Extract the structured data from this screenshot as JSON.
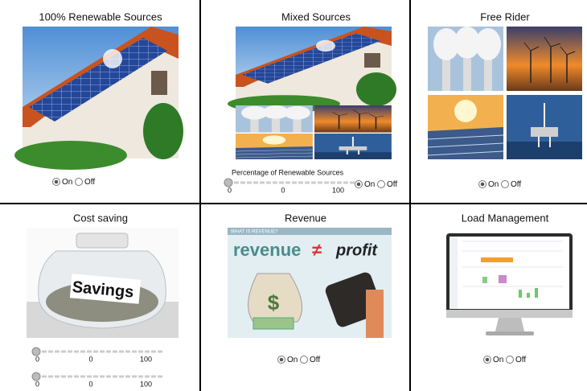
{
  "panels": [
    {
      "title": "100% Renewable Sources",
      "options": [
        "On",
        "Off"
      ]
    },
    {
      "title": "Mixed Sources",
      "slider": {
        "label": "Percentage of Renewable Sources",
        "min": 0,
        "value": 0,
        "max": 100
      },
      "options": [
        "On",
        "Off"
      ]
    },
    {
      "title": "Free Rider",
      "options": [
        "On",
        "Off"
      ]
    },
    {
      "title": "Cost saving",
      "image_text": "Savings",
      "sliders": [
        {
          "min": 0,
          "value": 0,
          "max": 100
        },
        {
          "min": 0,
          "value": 0,
          "max": 100
        }
      ]
    },
    {
      "title": "Revenue",
      "image_texts": [
        "WHAT IS REVENUE?",
        "revenue",
        "≠",
        "profit"
      ],
      "options": [
        "On",
        "Off"
      ]
    },
    {
      "title": "Load Management",
      "options": [
        "On",
        "Off"
      ]
    }
  ]
}
